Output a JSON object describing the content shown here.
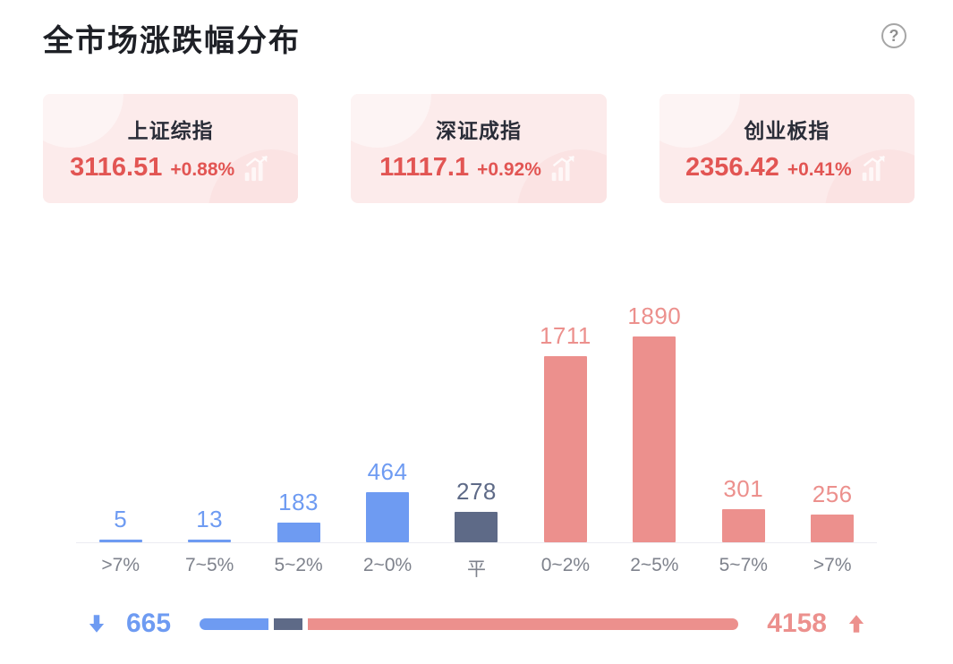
{
  "page": {
    "title": "全市场涨跌幅分布",
    "help_label": "?"
  },
  "indices": [
    {
      "name": "上证综指",
      "value": "3116.51",
      "change": "+0.88%"
    },
    {
      "name": "深证成指",
      "value": "11117.1",
      "change": "+0.92%"
    },
    {
      "name": "创业板指",
      "value": "2356.42",
      "change": "+0.41%"
    }
  ],
  "chart_data": {
    "type": "bar",
    "title": "全市场涨跌幅分布",
    "categories": [
      ">7%",
      "7~5%",
      "5~2%",
      "2~0%",
      "平",
      "0~2%",
      "2~5%",
      "5~7%",
      ">7%"
    ],
    "values": [
      5,
      13,
      183,
      464,
      278,
      1711,
      1890,
      301,
      256
    ],
    "colors": [
      "#6e9bf2",
      "#6e9bf2",
      "#6e9bf2",
      "#6e9bf2",
      "#5e6a87",
      "#ec908d",
      "#ec908d",
      "#ec908d",
      "#ec908d"
    ],
    "xlabel": "",
    "ylabel": "",
    "ylim": [
      0,
      1890
    ],
    "grid": false,
    "legend_position": "none",
    "value_labels": "above bars",
    "meaning": "count of stocks per price-change bucket; blue = falling, gray = flat, red = rising"
  },
  "summary": {
    "down_count": "665",
    "up_count": "4158",
    "segments": [
      {
        "name": "down",
        "value": 665,
        "color": "#6e9bf2"
      },
      {
        "name": "flat",
        "value": 278,
        "color": "#5e6a87"
      },
      {
        "name": "up",
        "value": 4158,
        "color": "#ec908d"
      }
    ]
  },
  "colors": {
    "down_blue": "#6e9bf2",
    "flat_gray": "#5e6a87",
    "up_red": "#ec908d",
    "index_value_red": "#e25553",
    "card_background": "#fcebeb",
    "title_dark": "#1e2026"
  }
}
